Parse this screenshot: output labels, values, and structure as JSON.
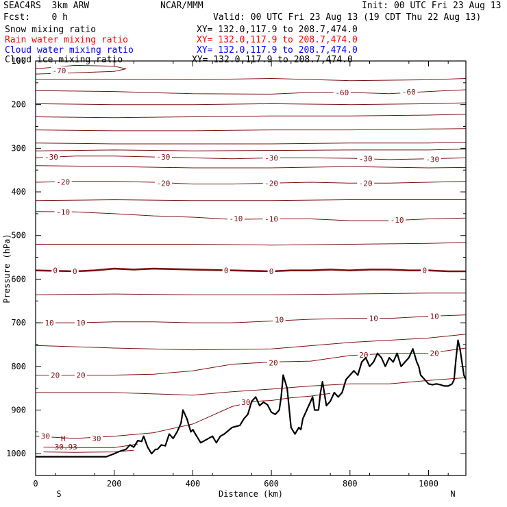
{
  "header": {
    "model": "SEAC4RS  3km ARW",
    "org": "NCAR/MMM",
    "init": "Init: 00 UTC Fri 23 Aug 13",
    "fcst": "Fcst:    0 h",
    "valid": "Valid: 00 UTC Fri 23 Aug 13 (19 CDT Thu 22 Aug 13)"
  },
  "legend": [
    {
      "label": "Snow mixing ratio",
      "xy": "XY= 132.0,117.9 to 208.7,474.0",
      "color": "#000000"
    },
    {
      "label": "Rain water mixing ratio",
      "xy": "XY= 132.0,117.9 to 208.7,474.0",
      "color": "#ff0000"
    },
    {
      "label": "Cloud water mixing ratio",
      "xy": "XY= 132.0,117.9 to 208.7,474.0",
      "color": "#0000ff"
    },
    {
      "label": "Cloud ice mixing ratio",
      "xy": "XY= 132.0,117.9 to 208.7,474.0",
      "color": "#000000"
    }
  ],
  "colors": {
    "isotherm": "#7a1010",
    "terrain": "#000000",
    "frame": "#000000"
  },
  "chart_data": {
    "type": "line",
    "subtype": "vertical cross-section",
    "xlabel": "Distance (km)",
    "ylabel": "Pressure (hPa)",
    "xlim": [
      0,
      1095
    ],
    "ylim": [
      1050,
      100
    ],
    "y_scale": "linear, inverted",
    "xticks": [
      0,
      200,
      400,
      600,
      800,
      1000
    ],
    "yticks": [
      100,
      200,
      300,
      400,
      500,
      600,
      700,
      800,
      900,
      1000
    ],
    "ytick_labels": [
      "100",
      "200",
      "300",
      "400",
      "500",
      "600",
      "700",
      "800",
      "900",
      "1000"
    ],
    "xtick_labels": [
      "0",
      "200",
      "400",
      "600",
      "800",
      "1000"
    ],
    "end_labels": {
      "left": "S",
      "right": "N"
    },
    "max_label": {
      "mark": "H",
      "value": "30.93",
      "x": 70,
      "p": 975
    },
    "isotherms": [
      {
        "t": -70,
        "x": [
          0,
          100,
          200,
          230,
          200,
          100,
          0
        ],
        "p": [
          118,
          110,
          112,
          118,
          124,
          127,
          130
        ]
      },
      {
        "t": -65,
        "x": [
          0,
          200,
          400,
          600,
          800,
          1000,
          1095
        ],
        "p": [
          142,
          142,
          143,
          140,
          145,
          143,
          140
        ]
      },
      {
        "t": -60,
        "x": [
          0,
          200,
          400,
          600,
          700,
          800,
          900,
          1000,
          1095
        ],
        "p": [
          168,
          170,
          175,
          176,
          172,
          172,
          175,
          170,
          166
        ]
      },
      {
        "t": -55,
        "x": [
          0,
          200,
          400,
          600,
          800,
          1000,
          1095
        ],
        "p": [
          198,
          200,
          200,
          198,
          200,
          198,
          196
        ]
      },
      {
        "t": -50,
        "x": [
          0,
          200,
          400,
          600,
          800,
          1000,
          1095
        ],
        "p": [
          228,
          230,
          228,
          226,
          226,
          224,
          222
        ]
      },
      {
        "t": -45,
        "x": [
          0,
          200,
          400,
          600,
          800,
          1000,
          1095
        ],
        "p": [
          258,
          260,
          260,
          258,
          258,
          256,
          255
        ]
      },
      {
        "t": -40,
        "x": [
          0,
          200,
          400,
          600,
          800,
          1000,
          1095
        ],
        "p": [
          288,
          290,
          290,
          290,
          288,
          288,
          286
        ]
      },
      {
        "t": -35,
        "x": [
          0,
          200,
          400,
          600,
          800,
          1000,
          1095
        ],
        "p": [
          306,
          304,
          306,
          305,
          304,
          304,
          302
        ]
      },
      {
        "t": -30,
        "x": [
          0,
          100,
          200,
          300,
          400,
          500,
          600,
          700,
          800,
          900,
          1000,
          1095
        ],
        "p": [
          322,
          318,
          318,
          320,
          322,
          324,
          322,
          322,
          323,
          326,
          324,
          322
        ]
      },
      {
        "t": -25,
        "x": [
          0,
          200,
          400,
          600,
          800,
          1000,
          1095
        ],
        "p": [
          340,
          342,
          345,
          345,
          342,
          345,
          344
        ]
      },
      {
        "t": -20,
        "x": [
          0,
          100,
          200,
          300,
          400,
          500,
          600,
          700,
          800,
          900,
          1000,
          1095
        ],
        "p": [
          378,
          376,
          376,
          378,
          382,
          382,
          380,
          378,
          380,
          380,
          378,
          376
        ]
      },
      {
        "t": -15,
        "x": [
          0,
          200,
          400,
          600,
          800,
          1000,
          1095
        ],
        "p": [
          420,
          418,
          420,
          420,
          418,
          418,
          418
        ]
      },
      {
        "t": -10,
        "x": [
          0,
          100,
          200,
          300,
          400,
          500,
          600,
          700,
          800,
          900,
          1000,
          1095
        ],
        "p": [
          445,
          446,
          450,
          455,
          458,
          463,
          462,
          462,
          466,
          466,
          462,
          460
        ]
      },
      {
        "t": -5,
        "x": [
          0,
          200,
          400,
          600,
          800,
          1000,
          1095
        ],
        "p": [
          520,
          520,
          520,
          522,
          520,
          518,
          516
        ]
      },
      {
        "t": 0,
        "x": [
          0,
          100,
          150,
          200,
          250,
          300,
          400,
          500,
          600,
          650,
          700,
          750,
          800,
          850,
          900,
          950,
          1000,
          1050,
          1095
        ],
        "p": [
          580,
          582,
          580,
          576,
          578,
          576,
          578,
          580,
          582,
          580,
          580,
          578,
          580,
          578,
          578,
          580,
          580,
          582,
          582
        ]
      },
      {
        "t": 5,
        "x": [
          0,
          200,
          400,
          600,
          800,
          1000,
          1095
        ],
        "p": [
          636,
          634,
          636,
          636,
          634,
          632,
          632
        ]
      },
      {
        "t": 10,
        "x": [
          0,
          100,
          200,
          300,
          400,
          500,
          600,
          700,
          800,
          900,
          1000,
          1095
        ],
        "p": [
          700,
          700,
          698,
          698,
          700,
          700,
          696,
          692,
          690,
          690,
          685,
          682
        ]
      },
      {
        "t": 15,
        "x": [
          0,
          200,
          400,
          600,
          800,
          1000,
          1095
        ],
        "p": [
          752,
          758,
          762,
          760,
          745,
          735,
          726
        ]
      },
      {
        "t": 20,
        "x": [
          0,
          100,
          200,
          300,
          400,
          500,
          600,
          700,
          800,
          900,
          1000,
          1095
        ],
        "p": [
          820,
          820,
          820,
          818,
          810,
          795,
          790,
          788,
          775,
          770,
          770,
          758
        ]
      },
      {
        "t": 25,
        "x": [
          0,
          200,
          400,
          500,
          600,
          700,
          800,
          900,
          1000,
          1095
        ],
        "p": [
          860,
          860,
          866,
          858,
          852,
          845,
          840,
          840,
          832,
          826
        ]
      },
      {
        "t": 30,
        "x": [
          0,
          100,
          200,
          300,
          400,
          500,
          560,
          600,
          650,
          700,
          750
        ],
        "p": [
          960,
          965,
          960,
          952,
          932,
          892,
          880,
          878,
          872,
          868,
          862
        ]
      },
      {
        "t": 30,
        "x": [
          20,
          100,
          200,
          230,
          260
        ],
        "p": [
          985,
          986,
          986,
          982,
          978
        ]
      },
      {
        "t": 35,
        "x": [
          20,
          100,
          200,
          250
        ],
        "p": [
          996,
          997,
          996,
          992
        ]
      }
    ],
    "isotherm_labels": [
      {
        "t": "-70",
        "x": 60,
        "p": 122
      },
      {
        "t": "-60",
        "x": 780,
        "p": 172
      },
      {
        "t": "-60",
        "x": 950,
        "p": 171
      },
      {
        "t": "-30",
        "x": 40,
        "p": 320
      },
      {
        "t": "-30",
        "x": 325,
        "p": 320
      },
      {
        "t": "-30",
        "x": 600,
        "p": 322
      },
      {
        "t": "-30",
        "x": 840,
        "p": 324
      },
      {
        "t": "-30",
        "x": 1010,
        "p": 325
      },
      {
        "t": "-20",
        "x": 70,
        "p": 377
      },
      {
        "t": "-20",
        "x": 325,
        "p": 380
      },
      {
        "t": "-20",
        "x": 600,
        "p": 380
      },
      {
        "t": "-20",
        "x": 840,
        "p": 380
      },
      {
        "t": "-10",
        "x": 70,
        "p": 446
      },
      {
        "t": "-10",
        "x": 510,
        "p": 461
      },
      {
        "t": "-10",
        "x": 600,
        "p": 462
      },
      {
        "t": "-10",
        "x": 920,
        "p": 464
      },
      {
        "t": "0",
        "x": 50,
        "p": 580
      },
      {
        "t": "0",
        "x": 100,
        "p": 582
      },
      {
        "t": "0",
        "x": 485,
        "p": 580
      },
      {
        "t": "0",
        "x": 600,
        "p": 582
      },
      {
        "t": "0",
        "x": 990,
        "p": 580
      },
      {
        "t": "10",
        "x": 35,
        "p": 700
      },
      {
        "t": "10",
        "x": 115,
        "p": 700
      },
      {
        "t": "10",
        "x": 620,
        "p": 693
      },
      {
        "t": "10",
        "x": 860,
        "p": 690
      },
      {
        "t": "10",
        "x": 1015,
        "p": 685
      },
      {
        "t": "20",
        "x": 50,
        "p": 820
      },
      {
        "t": "20",
        "x": 115,
        "p": 820
      },
      {
        "t": "20",
        "x": 605,
        "p": 792
      },
      {
        "t": "20",
        "x": 835,
        "p": 774
      },
      {
        "t": "20",
        "x": 1015,
        "p": 770
      },
      {
        "t": "30",
        "x": 25,
        "p": 960
      },
      {
        "t": "30",
        "x": 155,
        "p": 965
      },
      {
        "t": "30",
        "x": 535,
        "p": 882
      }
    ],
    "terrain": {
      "x": [
        0,
        50,
        100,
        150,
        180,
        200,
        210,
        230,
        240,
        250,
        260,
        270,
        275,
        285,
        295,
        300,
        305,
        310,
        320,
        330,
        340,
        350,
        360,
        370,
        375,
        385,
        395,
        400,
        410,
        420,
        430,
        440,
        450,
        460,
        470,
        480,
        500,
        520,
        530,
        540,
        550,
        555,
        560,
        570,
        580,
        590,
        600,
        610,
        620,
        625,
        630,
        640,
        650,
        660,
        670,
        675,
        680,
        690,
        700,
        705,
        710,
        720,
        725,
        730,
        740,
        750,
        760,
        770,
        780,
        790,
        800,
        810,
        820,
        830,
        840,
        850,
        860,
        870,
        880,
        890,
        900,
        910,
        920,
        925,
        930,
        940,
        950,
        960,
        970,
        975,
        980,
        990,
        1000,
        1010,
        1020,
        1030,
        1040,
        1050,
        1060,
        1065,
        1070,
        1075,
        1080,
        1090,
        1095
      ],
      "p": [
        1007,
        1007,
        1007,
        1007,
        1007,
        1000,
        996,
        990,
        980,
        985,
        970,
        972,
        960,
        985,
        1000,
        995,
        990,
        990,
        980,
        982,
        955,
        965,
        950,
        930,
        900,
        920,
        950,
        945,
        960,
        975,
        970,
        965,
        960,
        975,
        960,
        955,
        940,
        935,
        920,
        910,
        880,
        875,
        870,
        890,
        882,
        888,
        905,
        910,
        900,
        870,
        820,
        850,
        940,
        955,
        940,
        945,
        920,
        900,
        880,
        870,
        900,
        900,
        860,
        835,
        890,
        880,
        860,
        870,
        860,
        830,
        820,
        810,
        820,
        790,
        780,
        800,
        790,
        770,
        780,
        800,
        780,
        790,
        770,
        785,
        800,
        790,
        780,
        760,
        790,
        800,
        820,
        830,
        840,
        842,
        840,
        842,
        845,
        845,
        840,
        830,
        780,
        740,
        760,
        820,
        830
      ]
    }
  }
}
